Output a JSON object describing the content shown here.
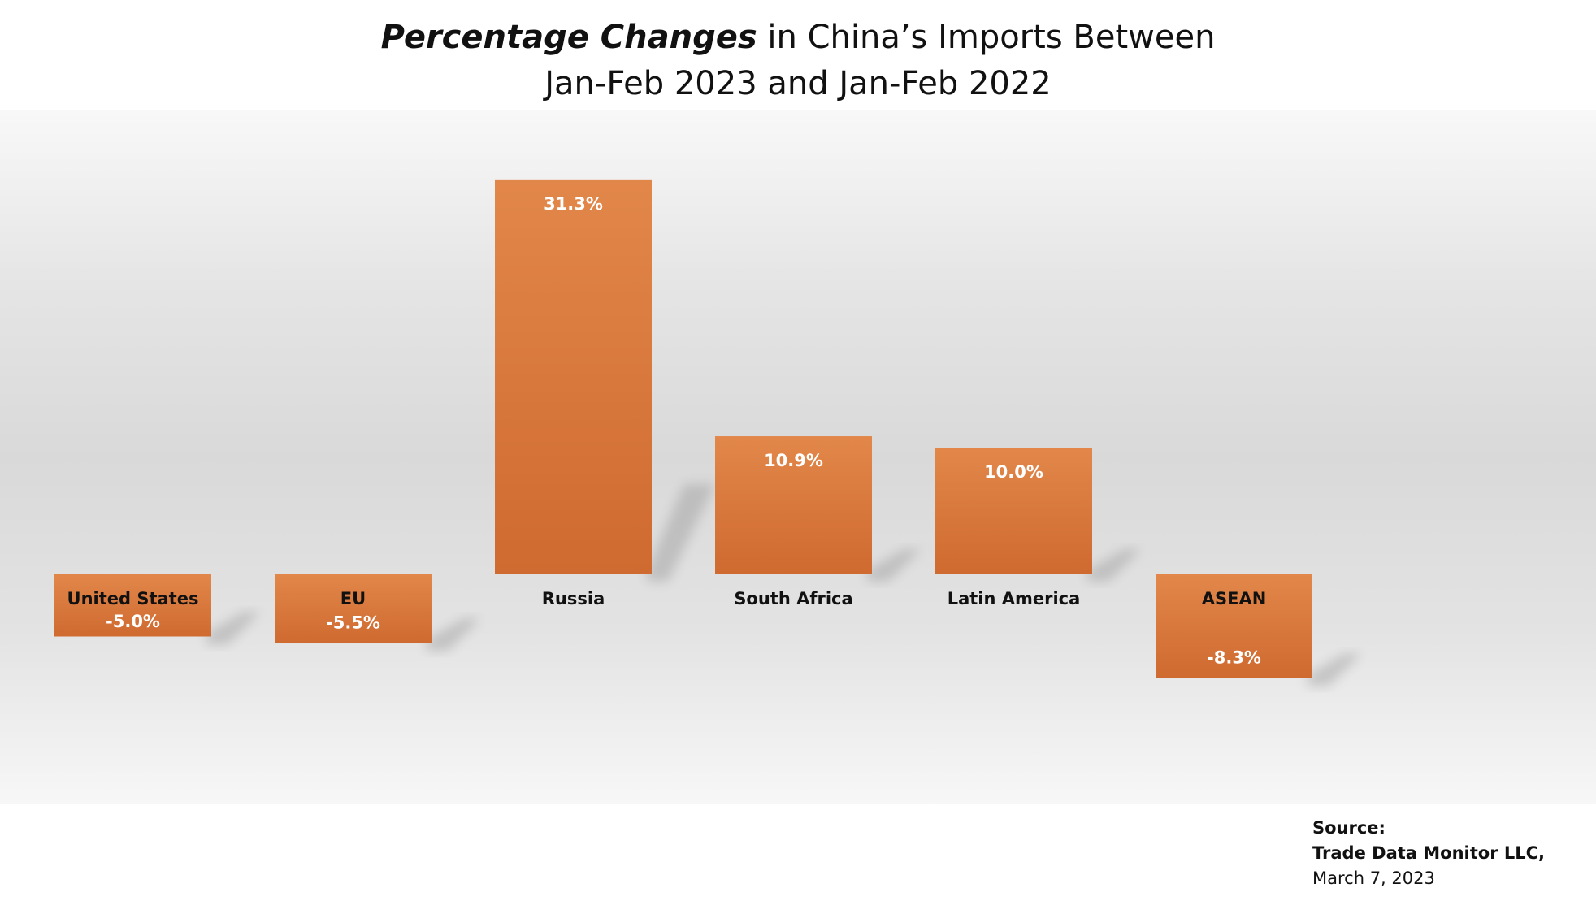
{
  "title": {
    "emphasis": "Percentage Changes",
    "rest_line1": " in China’s Imports Between",
    "line2": "Jan-Feb 2023 and Jan-Feb 2022"
  },
  "source": {
    "label": "Source:",
    "org": "Trade Data Monitor LLC,",
    "date": "March 7, 2023"
  },
  "colors": {
    "bar_top": "#e2874a",
    "bar_bottom": "#cf6a30",
    "shadow": "#9a9a9a",
    "label_on_bar": "#ffffff",
    "label_off_bar": "#111111"
  },
  "chart_data": {
    "type": "bar",
    "categories": [
      "United States",
      "EU",
      "Russia",
      "South Africa",
      "Latin America",
      "ASEAN"
    ],
    "values": [
      -5.0,
      -5.5,
      31.3,
      10.9,
      10.0,
      -8.3
    ],
    "value_labels": [
      "-5.0%",
      "-5.5%",
      "31.3%",
      "10.9%",
      "10.0%",
      "-8.3%"
    ],
    "xlabel": "",
    "ylabel": "",
    "ylim": [
      -8.3,
      31.3
    ],
    "grid": false,
    "legend": "none"
  }
}
